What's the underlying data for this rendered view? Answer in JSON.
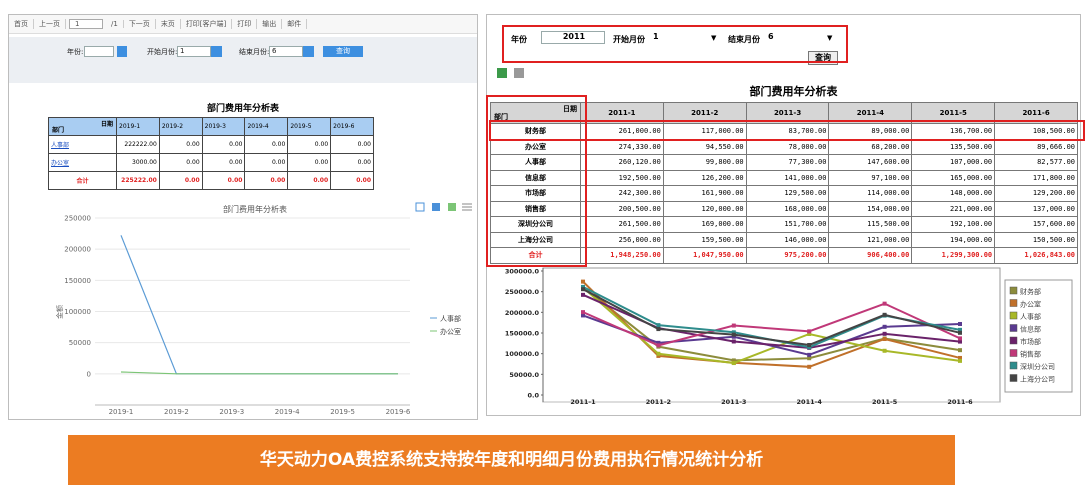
{
  "left": {
    "toolbar": [
      "首页",
      "上一页",
      "1",
      "/1",
      "下一页",
      "末页",
      "打印[客户端]",
      "打印",
      "输出",
      "邮件"
    ],
    "form": {
      "year_label": "年份:",
      "start_label": "开始月份:",
      "start_value": "1",
      "end_label": "结束月份:",
      "end_value": "6",
      "button": "查询"
    },
    "table": {
      "title": "部门费用年分析表",
      "corner_top": "日期",
      "corner_bottom": "部门",
      "total_row": [
        "合计",
        "225222.00",
        "0.00",
        "0.00",
        "0.00",
        "0.00",
        "0.00"
      ]
    },
    "chart": {
      "type": "line",
      "title": "部门费用年分析表",
      "y_label": "金额",
      "categories": [
        "2019-1",
        "2019-2",
        "2019-3",
        "2019-4",
        "2019-5",
        "2019-6"
      ],
      "series": [
        {
          "name": "人事部",
          "color": "#5b9bd5",
          "values": [
            222222,
            0,
            0,
            0,
            0,
            0
          ],
          "value_labels": [
            "222222.00",
            "0.00",
            "0.00",
            "0.00",
            "0.00",
            "0.00"
          ]
        },
        {
          "name": "办公室",
          "color": "#7cc576",
          "values": [
            3000,
            0,
            0,
            0,
            0,
            0
          ],
          "value_labels": [
            "3000.00",
            "0.00",
            "0.00",
            "0.00",
            "0.00",
            "0.00"
          ]
        }
      ],
      "ylim": [
        -50000,
        250000
      ],
      "yticks": [
        0,
        50000,
        100000,
        150000,
        200000,
        250000
      ],
      "grid": true
    }
  },
  "right": {
    "form": {
      "year_label": "年份",
      "year_value": "2011",
      "start_label": "开始月份",
      "start_value": "1",
      "end_label": "结束月份",
      "end_value": "6",
      "button": "查询"
    },
    "table": {
      "title": "部门费用年分析表",
      "corner_top": "日期",
      "corner_bottom": "部门",
      "total_row": [
        "合计",
        "1,948,250.00",
        "1,047,950.00",
        "975,200.00",
        "906,400.00",
        "1,299,300.00",
        "1,026,843.00"
      ]
    },
    "chart": {
      "type": "line",
      "categories": [
        "2011-1",
        "2011-2",
        "2011-3",
        "2011-4",
        "2011-5",
        "2011-6"
      ],
      "series": [
        {
          "name": "财务部",
          "color": "#8c8c3c",
          "values": [
            261000,
            117000,
            83700,
            89000,
            136700,
            108500
          ],
          "value_labels": [
            "261,000.00",
            "117,000.00",
            "83,700.00",
            "89,000.00",
            "136,700.00",
            "108,500.00"
          ]
        },
        {
          "name": "办公室",
          "color": "#c0702a",
          "values": [
            274330,
            94550,
            78000,
            68200,
            135500,
            89666
          ],
          "value_labels": [
            "274,330.00",
            "94,550.00",
            "78,000.00",
            "68,200.00",
            "135,500.00",
            "89,666.00"
          ]
        },
        {
          "name": "人事部",
          "color": "#a8b828",
          "values": [
            260120,
            99800,
            77300,
            147600,
            107000,
            82577
          ],
          "value_labels": [
            "260,120.00",
            "99,800.00",
            "77,300.00",
            "147,600.00",
            "107,000.00",
            "82,577.00"
          ]
        },
        {
          "name": "信息部",
          "color": "#5a3a90",
          "values": [
            192500,
            126200,
            141000,
            97100,
            165000,
            171800
          ],
          "value_labels": [
            "192,500.00",
            "126,200.00",
            "141,000.00",
            "97,100.00",
            "165,000.00",
            "171,800.00"
          ]
        },
        {
          "name": "市场部",
          "color": "#6a226a",
          "values": [
            242300,
            161900,
            129500,
            114000,
            148000,
            129200
          ],
          "value_labels": [
            "242,300.00",
            "161,900.00",
            "129,500.00",
            "114,000.00",
            "148,000.00",
            "129,200.00"
          ]
        },
        {
          "name": "销售部",
          "color": "#c03878",
          "values": [
            200500,
            120000,
            168000,
            154000,
            221000,
            137000
          ],
          "value_labels": [
            "200,500.00",
            "120,000.00",
            "168,000.00",
            "154,000.00",
            "221,000.00",
            "137,000.00"
          ]
        },
        {
          "name": "深圳分公司",
          "color": "#2e8c8c",
          "values": [
            261500,
            169000,
            151700,
            115500,
            192100,
            157600
          ],
          "value_labels": [
            "261,500.00",
            "169,000.00",
            "151,700.00",
            "115,500.00",
            "192,100.00",
            "157,600.00"
          ]
        },
        {
          "name": "上海分公司",
          "color": "#444444",
          "values": [
            256000,
            159500,
            146000,
            121000,
            194000,
            150500
          ],
          "value_labels": [
            "256,000.00",
            "159,500.00",
            "146,000.00",
            "121,000.00",
            "194,000.00",
            "150,500.00"
          ]
        }
      ],
      "ylim": [
        0,
        300000
      ],
      "yticks": [
        {
          "value": 0,
          "label": "0.0"
        },
        {
          "value": 50000,
          "label": "50000.0"
        },
        {
          "value": 100000,
          "label": "100000.0"
        },
        {
          "value": 150000,
          "label": "150000.0"
        },
        {
          "value": 200000,
          "label": "200000.0"
        },
        {
          "value": 250000,
          "label": "250000.0"
        },
        {
          "value": 300000,
          "label": "300000.0"
        }
      ],
      "grid": false
    }
  },
  "banner": "华天动力OA费控系统支持按年度和明细月份费用执行情况统计分析"
}
